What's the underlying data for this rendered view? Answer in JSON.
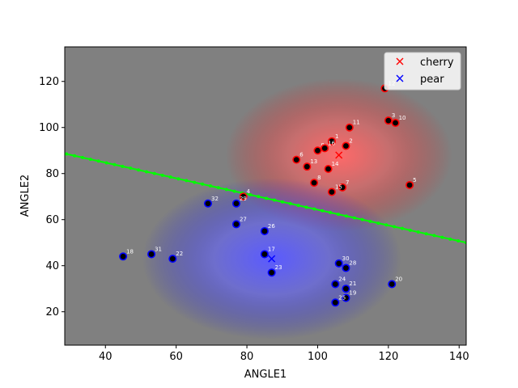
{
  "chart_data": {
    "type": "scatter",
    "title": "",
    "xlabel": "ANGLE1",
    "ylabel": "ANGLE2",
    "xlim": [
      28.5,
      142
    ],
    "ylim": [
      5.5,
      135
    ],
    "xticks": [
      40,
      60,
      80,
      100,
      120,
      140
    ],
    "yticks": [
      20,
      40,
      60,
      80,
      100,
      120
    ],
    "background": "gradient: red glow around cherry center, blue glow around pear center, gray elsewhere",
    "colors": {
      "background": "#808080",
      "cherry": "#ff0000",
      "pear": "#0000ff",
      "boundary": "#00ff00",
      "point_fill": "#000000"
    },
    "legend": {
      "placement": "top-right",
      "entries": [
        {
          "label": "cherry",
          "color": "#ff0000",
          "marker": "x"
        },
        {
          "label": "pear",
          "color": "#0000ff",
          "marker": "x"
        }
      ]
    },
    "centers": [
      {
        "name": "cherry",
        "x": 106,
        "y": 88
      },
      {
        "name": "pear",
        "x": 87,
        "y": 43
      }
    ],
    "boundary_line": {
      "x": [
        29,
        142
      ],
      "y": [
        88.5,
        50
      ]
    },
    "points": [
      {
        "label": "1",
        "x": 104,
        "y": 94,
        "class": "cherry"
      },
      {
        "label": "2",
        "x": 108,
        "y": 92,
        "class": "cherry"
      },
      {
        "label": "3",
        "x": 120,
        "y": 103,
        "class": "cherry"
      },
      {
        "label": "4",
        "x": 79,
        "y": 70,
        "class": "cherry"
      },
      {
        "label": "5",
        "x": 126,
        "y": 75,
        "class": "cherry"
      },
      {
        "label": "6",
        "x": 94,
        "y": 86,
        "class": "cherry"
      },
      {
        "label": "7",
        "x": 107,
        "y": 74,
        "class": "cherry"
      },
      {
        "label": "8",
        "x": 99,
        "y": 76,
        "class": "cherry"
      },
      {
        "label": "9",
        "x": 100,
        "y": 90,
        "class": "cherry"
      },
      {
        "label": "10",
        "x": 122,
        "y": 102,
        "class": "cherry"
      },
      {
        "label": "11",
        "x": 109,
        "y": 100,
        "class": "cherry"
      },
      {
        "label": "12",
        "x": 119,
        "y": 117,
        "class": "cherry"
      },
      {
        "label": "13",
        "x": 97,
        "y": 83,
        "class": "cherry"
      },
      {
        "label": "14",
        "x": 103,
        "y": 82,
        "class": "cherry"
      },
      {
        "label": "15",
        "x": 104,
        "y": 72,
        "class": "cherry"
      },
      {
        "label": "16",
        "x": 102,
        "y": 91,
        "class": "cherry"
      },
      {
        "label": "17",
        "x": 85,
        "y": 45,
        "class": "pear"
      },
      {
        "label": "18",
        "x": 45,
        "y": 44,
        "class": "pear"
      },
      {
        "label": "19",
        "x": 108,
        "y": 26,
        "class": "pear"
      },
      {
        "label": "20",
        "x": 121,
        "y": 32,
        "class": "pear"
      },
      {
        "label": "21",
        "x": 108,
        "y": 30,
        "class": "pear"
      },
      {
        "label": "22",
        "x": 59,
        "y": 43,
        "class": "pear"
      },
      {
        "label": "23",
        "x": 87,
        "y": 37,
        "class": "pear"
      },
      {
        "label": "24",
        "x": 105,
        "y": 32,
        "class": "pear"
      },
      {
        "label": "25",
        "x": 105,
        "y": 24,
        "class": "pear"
      },
      {
        "label": "26",
        "x": 85,
        "y": 55,
        "class": "pear"
      },
      {
        "label": "27",
        "x": 77,
        "y": 58,
        "class": "pear"
      },
      {
        "label": "28",
        "x": 108,
        "y": 39,
        "class": "pear"
      },
      {
        "label": "29",
        "x": 77,
        "y": 67,
        "class": "pear"
      },
      {
        "label": "30",
        "x": 106,
        "y": 41,
        "class": "pear"
      },
      {
        "label": "31",
        "x": 53,
        "y": 45,
        "class": "pear"
      },
      {
        "label": "32",
        "x": 69,
        "y": 67,
        "class": "pear"
      }
    ]
  }
}
